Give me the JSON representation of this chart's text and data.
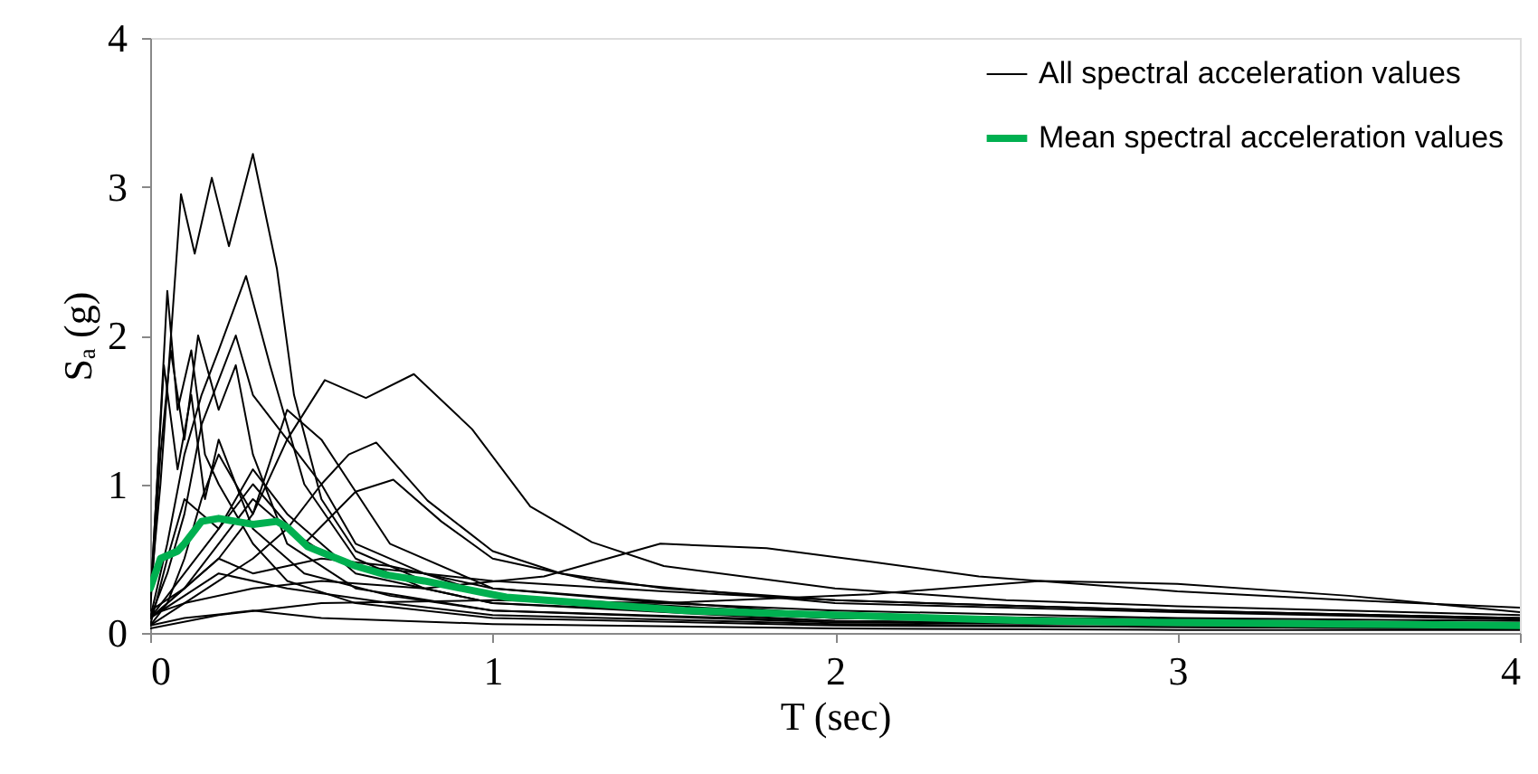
{
  "chart_data": {
    "type": "line",
    "xlabel": "T (sec)",
    "ylabel": "Sₐ (g)",
    "xlim": [
      0,
      4
    ],
    "xticks": [
      0,
      1,
      2,
      3,
      4
    ],
    "ylim": [
      0,
      4
    ],
    "yticks": [
      0,
      1,
      2,
      3,
      4
    ],
    "grid": false,
    "legend": "top right",
    "marker": "none",
    "line_style": "solid",
    "series": [
      {
        "name": "All spectral acceleration values",
        "color": "#000000",
        "x": [
          0,
          0.03,
          0.09,
          0.13,
          0.18,
          0.23,
          0.3,
          0.37,
          0.42,
          0.5,
          0.6,
          0.8,
          1,
          1.5,
          2,
          3,
          4
        ],
        "values": [
          0.25,
          1.0,
          2.95,
          2.55,
          3.06,
          2.6,
          3.22,
          2.45,
          1.6,
          0.9,
          0.55,
          0.35,
          0.25,
          0.15,
          0.1,
          0.07,
          0.05
        ]
      },
      {
        "color": "#000000",
        "x": [
          0,
          0.1,
          0.2,
          0.3,
          0.4,
          0.51,
          0.63,
          0.77,
          0.94,
          1.11,
          1.29,
          1.5,
          2,
          2.5,
          3,
          4
        ],
        "values": [
          0.15,
          0.3,
          0.5,
          0.8,
          1.3,
          1.7,
          1.58,
          1.74,
          1.37,
          0.85,
          0.61,
          0.45,
          0.3,
          0.22,
          0.18,
          0.12
        ]
      },
      {
        "color": "#000000",
        "x": [
          0,
          0.1,
          0.2,
          0.3,
          0.4,
          0.5,
          0.58,
          0.66,
          0.81,
          1,
          1.2,
          1.5,
          2,
          3,
          4
        ],
        "values": [
          0.1,
          0.3,
          0.6,
          0.9,
          0.7,
          1.0,
          1.2,
          1.28,
          0.89,
          0.55,
          0.4,
          0.3,
          0.22,
          0.15,
          0.1
        ]
      },
      {
        "color": "#000000",
        "x": [
          0,
          0.1,
          0.2,
          0.3,
          0.45,
          0.6,
          0.71,
          0.85,
          1,
          1.3,
          2,
          3,
          4
        ],
        "values": [
          0.1,
          0.4,
          0.7,
          1.0,
          0.6,
          0.95,
          1.03,
          0.75,
          0.5,
          0.35,
          0.2,
          0.14,
          0.09
        ]
      },
      {
        "color": "#000000",
        "x": [
          0,
          0.1,
          0.3,
          0.5,
          0.8,
          1.15,
          1.49,
          1.8,
          2.1,
          2.42,
          3,
          3.5,
          4
        ],
        "values": [
          0.12,
          0.2,
          0.3,
          0.35,
          0.3,
          0.38,
          0.6,
          0.57,
          0.48,
          0.38,
          0.28,
          0.22,
          0.17
        ]
      },
      {
        "color": "#000000",
        "x": [
          0,
          0.2,
          0.5,
          1,
          1.5,
          2.1,
          2.6,
          3,
          3.5,
          4
        ],
        "values": [
          0.03,
          0.12,
          0.2,
          0.22,
          0.2,
          0.26,
          0.35,
          0.33,
          0.25,
          0.14
        ]
      },
      {
        "color": "#000000",
        "x": [
          0,
          0.02,
          0.05,
          0.08,
          0.12,
          0.16,
          0.2,
          0.3,
          0.4,
          0.6,
          1,
          2,
          4
        ],
        "values": [
          0.2,
          1.0,
          2.3,
          1.5,
          1.9,
          1.2,
          1.0,
          0.6,
          0.35,
          0.2,
          0.1,
          0.05,
          0.03
        ]
      },
      {
        "color": "#000000",
        "x": [
          0,
          0.05,
          0.1,
          0.15,
          0.2,
          0.28,
          0.35,
          0.45,
          0.6,
          0.8,
          1,
          2,
          4
        ],
        "values": [
          0.1,
          0.6,
          1.2,
          1.6,
          1.9,
          2.4,
          1.8,
          1.0,
          0.5,
          0.3,
          0.2,
          0.1,
          0.05
        ]
      },
      {
        "color": "#000000",
        "x": [
          0,
          0.03,
          0.06,
          0.1,
          0.14,
          0.2,
          0.25,
          0.3,
          0.4,
          0.6,
          1,
          2,
          4
        ],
        "values": [
          0.15,
          1.2,
          1.9,
          1.3,
          2.0,
          1.5,
          1.8,
          1.2,
          0.6,
          0.3,
          0.15,
          0.08,
          0.04
        ]
      },
      {
        "color": "#000000",
        "x": [
          0,
          0.05,
          0.1,
          0.15,
          0.2,
          0.25,
          0.3,
          0.4,
          0.5,
          0.6,
          0.8,
          1,
          2,
          4
        ],
        "values": [
          0.1,
          0.4,
          0.8,
          1.4,
          1.7,
          2.0,
          1.6,
          1.3,
          1.0,
          0.6,
          0.4,
          0.25,
          0.12,
          0.06
        ]
      },
      {
        "color": "#000000",
        "x": [
          0,
          0.05,
          0.1,
          0.15,
          0.2,
          0.3,
          0.4,
          0.5,
          0.7,
          1,
          2,
          4
        ],
        "values": [
          0.05,
          0.2,
          0.5,
          0.9,
          1.2,
          0.8,
          1.5,
          1.3,
          0.6,
          0.3,
          0.12,
          0.05
        ]
      },
      {
        "color": "#000000",
        "x": [
          0,
          0.04,
          0.08,
          0.12,
          0.16,
          0.2,
          0.3,
          0.45,
          0.7,
          1,
          2,
          4
        ],
        "values": [
          0.2,
          1.8,
          1.1,
          1.6,
          0.9,
          1.3,
          0.7,
          0.4,
          0.25,
          0.15,
          0.07,
          0.04
        ]
      },
      {
        "color": "#000000",
        "x": [
          0,
          0.1,
          0.2,
          0.3,
          0.4,
          0.5,
          0.6,
          0.8,
          1,
          1.5,
          2,
          3,
          4
        ],
        "values": [
          0.05,
          0.2,
          0.35,
          0.5,
          0.7,
          0.55,
          0.45,
          0.4,
          0.35,
          0.28,
          0.22,
          0.15,
          0.1
        ]
      },
      {
        "color": "#000000",
        "x": [
          0,
          0.1,
          0.3,
          0.5,
          1,
          2,
          3,
          4
        ],
        "values": [
          0.05,
          0.1,
          0.15,
          0.1,
          0.06,
          0.03,
          0.02,
          0.02
        ]
      },
      {
        "color": "#000000",
        "x": [
          0,
          0.1,
          0.2,
          0.4,
          0.7,
          1,
          2,
          3,
          4
        ],
        "values": [
          0.1,
          0.25,
          0.4,
          0.3,
          0.2,
          0.12,
          0.06,
          0.04,
          0.03
        ]
      },
      {
        "color": "#000000",
        "x": [
          0,
          0.05,
          0.1,
          0.2,
          0.3,
          0.4,
          0.6,
          1,
          2,
          4
        ],
        "values": [
          0.05,
          0.5,
          0.9,
          0.7,
          1.1,
          0.8,
          0.4,
          0.2,
          0.08,
          0.04
        ]
      },
      {
        "color": "#000000",
        "x": [
          0,
          0.1,
          0.2,
          0.3,
          0.5,
          0.7,
          1,
          1.5,
          2,
          3,
          4
        ],
        "values": [
          0.1,
          0.3,
          0.5,
          0.4,
          0.5,
          0.45,
          0.3,
          0.2,
          0.15,
          0.1,
          0.08
        ]
      },
      {
        "name": "Mean spectral acceleration values",
        "color": "#00b050",
        "x": [
          0,
          0.03,
          0.08,
          0.1,
          0.15,
          0.2,
          0.25,
          0.3,
          0.37,
          0.4,
          0.46,
          0.6,
          0.69,
          0.8,
          1.04,
          1.56,
          2,
          2.6,
          3,
          3.5,
          4
        ],
        "values": [
          0.3,
          0.5,
          0.55,
          0.6,
          0.75,
          0.77,
          0.75,
          0.73,
          0.75,
          0.71,
          0.58,
          0.45,
          0.39,
          0.35,
          0.24,
          0.15,
          0.12,
          0.08,
          0.07,
          0.06,
          0.05
        ]
      }
    ]
  }
}
